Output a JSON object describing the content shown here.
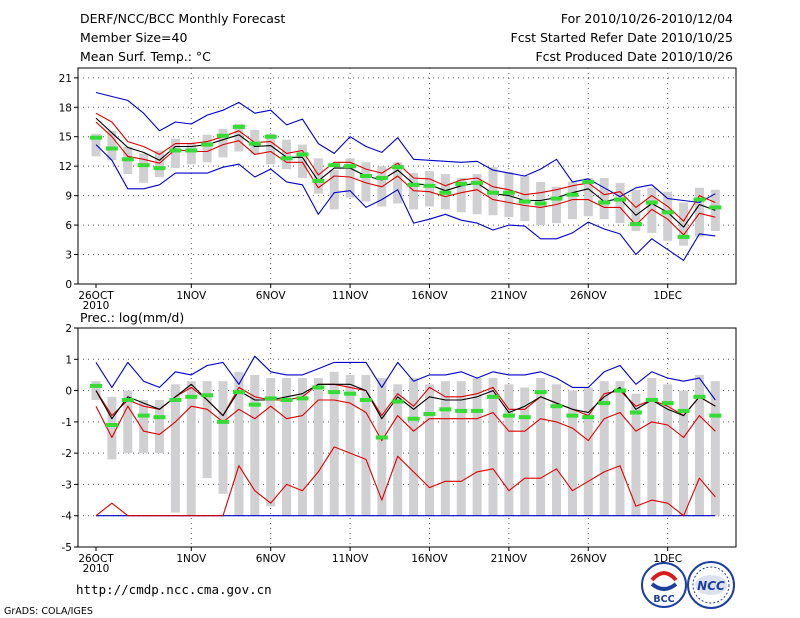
{
  "header": {
    "title": "DERF/NCC/BCC Monthly Forecast",
    "member_size": "Member Size=40",
    "var1_label": "Mean Surf. Temp.: °C",
    "period": "For 2010/10/26-2010/12/04",
    "refer_date": "Fcst Started Refer Date 2010/10/25",
    "produced_date": "Fcst Produced Date 2010/10/26"
  },
  "panel2_label": "Prec.: log(mm/d)",
  "footer": {
    "url": "http://cmdp.ncc.cma.gov.cn",
    "grads": "GrADS: COLA/IGES",
    "logo_bcc": "BCC",
    "logo_ncc": "NCC"
  },
  "colors": {
    "envelope": "#0000cc",
    "spread": "#dd0000",
    "mean": "#000000",
    "box": "#d0d0d2",
    "median": "#33dd33",
    "grid": "#555555"
  },
  "chart_data": [
    {
      "type": "line",
      "title": "Mean Surf. Temp.: °C",
      "x_tick_labels": [
        "26OCT",
        "1NOV",
        "6NOV",
        "11NOV",
        "16NOV",
        "21NOV",
        "26NOV",
        "1DEC"
      ],
      "x_tick_days": [
        1,
        7,
        12,
        17,
        22,
        27,
        32,
        37
      ],
      "x_year_label": "2010",
      "x": [
        1,
        2,
        3,
        4,
        5,
        6,
        7,
        8,
        9,
        10,
        11,
        12,
        13,
        14,
        15,
        16,
        17,
        18,
        19,
        20,
        21,
        22,
        23,
        24,
        25,
        26,
        27,
        28,
        29,
        30,
        31,
        32,
        33,
        34,
        35,
        36,
        37,
        38,
        39,
        40
      ],
      "ylim": [
        0,
        22
      ],
      "y_ticks": [
        0,
        3,
        6,
        9,
        12,
        15,
        18,
        21
      ],
      "box_low": [
        13.0,
        12.6,
        11.2,
        10.3,
        10.9,
        11.8,
        12.2,
        12.4,
        12.9,
        13.5,
        13.2,
        12.2,
        11.7,
        10.8,
        9.2,
        7.6,
        8.8,
        8.4,
        7.9,
        8.2,
        7.6,
        7.9,
        7.6,
        7.3,
        7.1,
        7.0,
        6.8,
        6.4,
        6.0,
        6.2,
        6.6,
        6.9,
        6.6,
        6.2,
        5.4,
        5.2,
        4.4,
        3.9,
        4.8,
        5.4
      ],
      "box_high": [
        15.3,
        15.6,
        14.0,
        13.3,
        13.6,
        14.8,
        14.4,
        15.2,
        15.8,
        16.3,
        15.7,
        15.3,
        14.7,
        14.2,
        12.8,
        11.6,
        12.8,
        12.4,
        12.0,
        12.4,
        11.3,
        11.5,
        11.2,
        10.8,
        11.2,
        11.9,
        11.4,
        11.0,
        10.4,
        9.9,
        10.4,
        10.8,
        10.8,
        10.3,
        9.6,
        9.8,
        9.4,
        8.3,
        9.8,
        9.6
      ],
      "median": [
        14.9,
        13.8,
        12.7,
        12.1,
        11.8,
        13.6,
        13.6,
        14.2,
        15.1,
        16.0,
        14.3,
        15.0,
        12.8,
        13.2,
        10.5,
        12.1,
        12.0,
        11.0,
        10.8,
        11.9,
        10.1,
        10.0,
        9.3,
        10.2,
        10.3,
        9.3,
        9.3,
        8.4,
        8.2,
        8.7,
        9.1,
        10.4,
        8.3,
        8.6,
        6.1,
        8.3,
        7.3,
        4.8,
        8.6,
        7.8
      ],
      "series": [
        {
          "name": "max",
          "role": "envelope",
          "values": [
            19.5,
            19.1,
            18.7,
            17.4,
            15.6,
            16.5,
            16.3,
            17.2,
            17.7,
            18.5,
            17.4,
            17.7,
            16.2,
            16.8,
            14.3,
            13.3,
            15.0,
            14.0,
            13.4,
            14.9,
            12.7,
            12.6,
            12.5,
            12.4,
            12.5,
            11.6,
            11.3,
            11.0,
            11.7,
            12.7,
            10.4,
            10.7,
            9.8,
            8.9,
            9.8,
            10.1,
            8.7,
            8.5,
            8.3,
            9.2
          ]
        },
        {
          "name": "upper",
          "role": "spread",
          "values": [
            17.4,
            16.5,
            14.5,
            14.0,
            13.2,
            14.3,
            14.3,
            14.5,
            15.0,
            15.6,
            14.4,
            14.5,
            13.3,
            13.6,
            11.1,
            12.4,
            12.4,
            11.7,
            11.3,
            12.3,
            10.8,
            10.7,
            10.0,
            10.6,
            10.8,
            9.9,
            9.6,
            9.1,
            9.3,
            9.6,
            10.0,
            10.3,
            9.1,
            9.4,
            7.8,
            9.0,
            7.9,
            6.4,
            9.0,
            8.3
          ]
        },
        {
          "name": "mean",
          "role": "mean",
          "values": [
            16.9,
            15.4,
            13.9,
            13.4,
            12.6,
            14.0,
            14.0,
            14.2,
            14.7,
            15.2,
            14.0,
            14.1,
            12.9,
            12.9,
            10.5,
            11.8,
            11.8,
            11.0,
            10.6,
            11.6,
            10.2,
            10.1,
            9.5,
            10.0,
            10.3,
            9.2,
            9.0,
            8.5,
            8.5,
            8.8,
            9.3,
            9.7,
            8.4,
            8.7,
            7.0,
            8.2,
            7.3,
            5.8,
            8.1,
            7.5
          ]
        },
        {
          "name": "lower",
          "role": "spread",
          "values": [
            16.5,
            15.0,
            13.0,
            12.7,
            12.3,
            13.7,
            13.5,
            13.5,
            14.2,
            14.6,
            13.2,
            13.5,
            12.4,
            12.4,
            9.8,
            11.0,
            10.9,
            10.3,
            9.9,
            11.0,
            9.5,
            9.4,
            8.9,
            9.3,
            9.6,
            8.6,
            8.3,
            8.0,
            7.8,
            8.1,
            8.6,
            8.6,
            7.8,
            7.8,
            6.0,
            7.6,
            6.6,
            5.0,
            7.2,
            6.8
          ]
        },
        {
          "name": "min",
          "role": "envelope",
          "values": [
            14.2,
            12.6,
            9.7,
            9.7,
            10.1,
            11.3,
            11.3,
            11.3,
            11.9,
            12.2,
            10.9,
            11.7,
            10.4,
            10.1,
            7.1,
            9.3,
            9.5,
            7.8,
            8.6,
            9.6,
            6.2,
            6.6,
            7.1,
            6.5,
            6.2,
            5.5,
            6.0,
            5.9,
            4.6,
            4.6,
            5.2,
            6.3,
            5.6,
            5.1,
            3.0,
            4.6,
            3.5,
            2.4,
            5.1,
            4.9
          ]
        }
      ]
    },
    {
      "type": "line",
      "title": "Prec.: log(mm/d)",
      "x_tick_labels": [
        "26OCT",
        "1NOV",
        "6NOV",
        "11NOV",
        "16NOV",
        "21NOV",
        "26NOV",
        "1DEC"
      ],
      "x_tick_days": [
        1,
        7,
        12,
        17,
        22,
        27,
        32,
        37
      ],
      "x_year_label": "2010",
      "x": [
        1,
        2,
        3,
        4,
        5,
        6,
        7,
        8,
        9,
        10,
        11,
        12,
        13,
        14,
        15,
        16,
        17,
        18,
        19,
        20,
        21,
        22,
        23,
        24,
        25,
        26,
        27,
        28,
        29,
        30,
        31,
        32,
        33,
        34,
        35,
        36,
        37,
        38,
        39,
        40
      ],
      "ylim": [
        -5,
        2
      ],
      "y_ticks": [
        -5,
        -4,
        -3,
        -2,
        -1,
        0,
        1,
        2
      ],
      "box_low": [
        -0.3,
        -2.2,
        -2.0,
        -2.0,
        -2.0,
        -3.9,
        -4.0,
        -2.8,
        -3.3,
        -4.0,
        -4.0,
        -3.7,
        -4.0,
        -4.0,
        -4.0,
        -4.0,
        -4.0,
        -4.0,
        -4.0,
        -4.0,
        -4.0,
        -4.0,
        -4.0,
        -4.0,
        -4.0,
        -4.0,
        -4.0,
        -4.0,
        -4.0,
        -4.0,
        -4.0,
        -4.0,
        -4.0,
        -4.0,
        -4.0,
        -4.0,
        -4.0,
        -4.0,
        -4.0,
        -4.0
      ],
      "box_high": [
        0.3,
        -0.2,
        0.0,
        -0.3,
        -0.3,
        0.2,
        0.3,
        0.3,
        0.3,
        0.6,
        0.5,
        0.4,
        0.4,
        0.4,
        0.4,
        0.6,
        0.5,
        0.5,
        0.4,
        0.2,
        0.4,
        0.2,
        0.3,
        0.3,
        0.4,
        0.4,
        0.2,
        0.1,
        0.4,
        0.2,
        0.0,
        0.1,
        0.3,
        0.3,
        -0.1,
        0.4,
        0.2,
        0.0,
        0.5,
        0.3
      ],
      "median": [
        0.15,
        -1.1,
        -0.3,
        -0.8,
        -0.85,
        -0.3,
        -0.2,
        -0.15,
        -1.0,
        -0.05,
        -0.45,
        -0.25,
        -0.3,
        -0.25,
        0.1,
        -0.05,
        -0.1,
        -0.3,
        -1.5,
        -0.35,
        -0.9,
        -0.75,
        -0.6,
        -0.65,
        -0.65,
        -0.2,
        -0.8,
        -0.85,
        -0.05,
        -0.5,
        -0.8,
        -0.85,
        -0.4,
        0.0,
        -0.7,
        -0.3,
        -0.4,
        -0.65,
        -0.2,
        -0.8
      ],
      "series": [
        {
          "name": "max",
          "role": "envelope",
          "values": [
            0.9,
            0.1,
            0.9,
            0.3,
            0.1,
            0.6,
            0.5,
            0.8,
            0.9,
            0.2,
            1.1,
            0.6,
            0.5,
            0.5,
            0.7,
            0.9,
            0.9,
            0.9,
            0.1,
            0.9,
            0.3,
            0.5,
            0.5,
            0.6,
            0.4,
            0.6,
            0.5,
            0.5,
            0.6,
            0.4,
            0.1,
            0.1,
            0.6,
            0.8,
            0.2,
            0.6,
            0.4,
            0.3,
            0.4,
            -0.3
          ]
        },
        {
          "name": "upper",
          "role": "spread",
          "values": [
            0.0,
            -0.8,
            -0.3,
            -0.5,
            -0.6,
            -0.2,
            0.1,
            -0.3,
            -0.8,
            0.1,
            -0.2,
            -0.3,
            -0.3,
            -0.2,
            0.2,
            0.2,
            0.1,
            0.0,
            -0.8,
            -0.1,
            -0.5,
            0.1,
            -0.2,
            -0.2,
            -0.1,
            0.1,
            -0.6,
            -0.6,
            -0.2,
            -0.4,
            -0.6,
            -0.8,
            -0.1,
            0.0,
            -0.5,
            -0.3,
            -0.5,
            -0.8,
            -0.2,
            -0.5
          ]
        },
        {
          "name": "mean",
          "role": "mean",
          "values": [
            0.0,
            -0.9,
            -0.2,
            -0.4,
            -0.6,
            -0.2,
            0.2,
            -0.3,
            -0.8,
            0.0,
            -0.3,
            -0.3,
            -0.2,
            -0.1,
            0.2,
            0.2,
            0.2,
            0.0,
            -0.9,
            -0.2,
            -0.6,
            -0.2,
            -0.3,
            -0.3,
            -0.2,
            0.0,
            -0.7,
            -0.5,
            -0.2,
            -0.4,
            -0.6,
            -0.7,
            -0.2,
            0.1,
            -0.6,
            -0.3,
            -0.6,
            -0.8,
            -0.2,
            -0.5
          ]
        },
        {
          "name": "lower",
          "role": "spread",
          "values": [
            -0.5,
            -1.5,
            -0.5,
            -1.3,
            -1.4,
            -1.0,
            -0.5,
            -0.6,
            -1.0,
            -0.6,
            -0.9,
            -0.5,
            -0.9,
            -0.8,
            -0.3,
            -0.3,
            -0.4,
            -0.7,
            -1.6,
            -0.8,
            -1.3,
            -0.9,
            -0.9,
            -0.9,
            -0.9,
            -0.7,
            -1.3,
            -1.3,
            -0.9,
            -1.0,
            -1.2,
            -1.6,
            -0.9,
            -0.7,
            -1.3,
            -1.0,
            -1.1,
            -1.5,
            -0.8,
            -1.3
          ]
        },
        {
          "name": "min",
          "role": "envelope",
          "values": [
            -4.0,
            -4.0,
            -4.0,
            -4.0,
            -4.0,
            -4.0,
            -4.0,
            -4.0,
            -4.0,
            -4.0,
            -4.0,
            -4.0,
            -4.0,
            -4.0,
            -4.0,
            -4.0,
            -4.0,
            -4.0,
            -4.0,
            -4.0,
            -4.0,
            -4.0,
            -4.0,
            -4.0,
            -4.0,
            -4.0,
            -4.0,
            -4.0,
            -4.0,
            -4.0,
            -4.0,
            -4.0,
            -4.0,
            -4.0,
            -4.0,
            -4.0,
            -4.0,
            -4.0,
            -4.0,
            -4.0
          ]
        },
        {
          "name": "low_spread",
          "role": "spread",
          "values": [
            -4.0,
            -3.6,
            -4.0,
            -4.0,
            -4.0,
            -4.0,
            -4.0,
            -4.0,
            -4.0,
            -2.4,
            -3.2,
            -3.6,
            -3.0,
            -3.2,
            -2.6,
            -1.8,
            -2.0,
            -2.2,
            -3.5,
            -2.1,
            -2.6,
            -3.1,
            -2.9,
            -2.9,
            -2.6,
            -2.5,
            -3.2,
            -2.8,
            -2.8,
            -2.5,
            -3.2,
            -2.9,
            -2.6,
            -2.4,
            -3.7,
            -3.5,
            -3.6,
            -4.0,
            -2.8,
            -3.4
          ]
        }
      ]
    }
  ]
}
